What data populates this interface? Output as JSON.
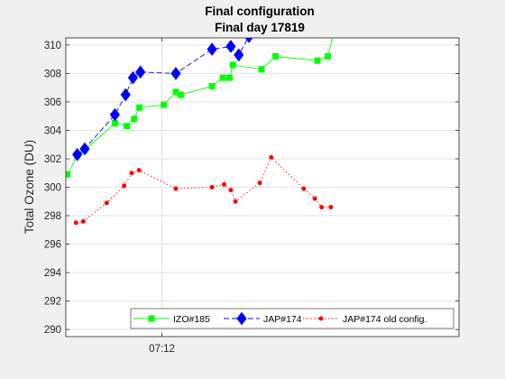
{
  "chart_data": {
    "type": "line",
    "title": "Final configuration",
    "subtitle": "Final day 17819",
    "xlabel": "",
    "ylabel": "Total Ozone (DU)",
    "ylim": [
      289.5,
      310.5
    ],
    "xlim": [
      "06:50",
      "08:20"
    ],
    "x_ticks": [
      {
        "x": "07:12",
        "label": "07:12"
      }
    ],
    "y_ticks": [
      290,
      292,
      294,
      296,
      298,
      300,
      302,
      304,
      306,
      308,
      310
    ],
    "grid": true,
    "legend_position": "bottom-right",
    "series": [
      {
        "name": "IZO#185",
        "color": "#00ff00",
        "line_style": "solid",
        "marker": "square",
        "x": [
          "06:50:21",
          "06:52:37",
          "06:54:19",
          "07:01:14",
          "07:03:58",
          "07:05:38",
          "07:06:51",
          "07:12:26",
          "07:15:11",
          "07:16:17",
          "07:23:28",
          "07:25:57",
          "07:27:29",
          "07:28:14",
          "07:34:48",
          "07:38:01",
          "07:47:35",
          "07:49:59",
          "07:51:49"
        ],
        "values": [
          300.9,
          302.2,
          302.6,
          304.5,
          304.3,
          304.8,
          305.6,
          305.8,
          306.7,
          306.5,
          307.1,
          307.7,
          307.7,
          308.6,
          308.3,
          309.2,
          308.9,
          309.2,
          311.5
        ]
      },
      {
        "name": "JAP#174",
        "color": "#0000ff",
        "line_style": "dashed",
        "marker": "diamond",
        "x": [
          "06:52:37",
          "06:54:19",
          "07:01:14",
          "07:03:41",
          "07:05:22",
          "07:07:04",
          "07:15:11",
          "07:23:28",
          "7:27:46",
          "7:29:35",
          "7:31:55"
        ],
        "values": [
          302.3,
          302.7,
          305.1,
          306.5,
          307.7,
          308.1,
          308.0,
          309.7,
          309.9,
          309.3,
          310.6
        ]
      },
      {
        "name": "JAP#174 old config.",
        "color": "#ff0000",
        "line_style": "dotted",
        "marker": "dot",
        "x": [
          "06:52:20",
          "06:54:00",
          "06:59:21",
          "07:03:21",
          "07:05:05",
          "07:06:45",
          "07:15:11",
          "07:23:28",
          "07:26:14",
          "07:27:46",
          "07:28:50",
          "07:34:23",
          "07:37:01",
          "07:44:28",
          "07:47:01",
          "07:48:34",
          "07:50:40"
        ],
        "values": [
          297.5,
          297.6,
          298.9,
          300.1,
          301.0,
          301.2,
          299.9,
          300.0,
          300.2,
          299.8,
          299.0,
          300.3,
          302.1,
          299.9,
          299.2,
          298.6,
          298.6
        ]
      }
    ]
  }
}
